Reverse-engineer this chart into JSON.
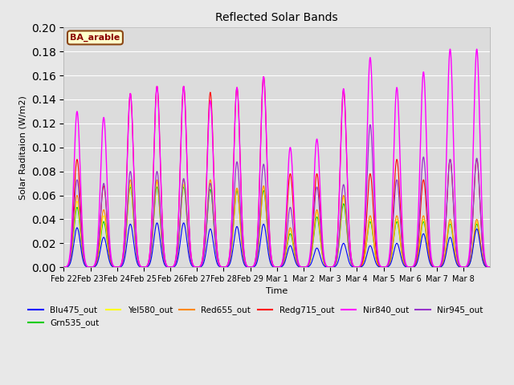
{
  "title": "Reflected Solar Bands",
  "ylabel": "Solar Raditaion (W/m2)",
  "xlabel": "Time",
  "annotation": "BA_arable",
  "ylim": [
    0.0,
    0.2
  ],
  "fig_width": 6.4,
  "fig_height": 4.8,
  "dpi": 100,
  "background_color": "#e8e8e8",
  "plot_bg": "#dcdcdc",
  "series": {
    "Blu475_out": {
      "color": "#0000ff",
      "lw": 0.8,
      "zorder": 4
    },
    "Grn535_out": {
      "color": "#00cc00",
      "lw": 0.8,
      "zorder": 3
    },
    "Yel580_out": {
      "color": "#ffff00",
      "lw": 0.8,
      "zorder": 3
    },
    "Red655_out": {
      "color": "#ff8800",
      "lw": 0.8,
      "zorder": 3
    },
    "Redg715_out": {
      "color": "#ff0000",
      "lw": 0.8,
      "zorder": 4
    },
    "Nir840_out": {
      "color": "#ff00ff",
      "lw": 1.0,
      "zorder": 5
    },
    "Nir945_out": {
      "color": "#9933cc",
      "lw": 0.9,
      "zorder": 4
    }
  },
  "xtick_labels": [
    "Feb 22",
    "Feb 23",
    "Feb 24",
    "Feb 25",
    "Feb 26",
    "Feb 27",
    "Feb 28",
    "Feb 29",
    "Mar 1",
    "Mar 2",
    "Mar 3",
    "Mar 4",
    "Mar 5",
    "Mar 6",
    "Mar 7",
    "Mar 8"
  ],
  "n_days": 16,
  "pts_per_day": 288,
  "sigma": 0.12,
  "day_peaks": {
    "Blu": [
      0.033,
      0.025,
      0.036,
      0.037,
      0.037,
      0.032,
      0.034,
      0.036,
      0.018,
      0.016,
      0.02,
      0.018,
      0.02,
      0.028,
      0.025,
      0.032
    ],
    "Grn": [
      0.05,
      0.038,
      0.067,
      0.067,
      0.067,
      0.065,
      0.064,
      0.064,
      0.028,
      0.042,
      0.053,
      0.038,
      0.038,
      0.038,
      0.036,
      0.036
    ],
    "Yel": [
      0.055,
      0.043,
      0.069,
      0.071,
      0.069,
      0.069,
      0.066,
      0.067,
      0.031,
      0.046,
      0.058,
      0.04,
      0.04,
      0.04,
      0.038,
      0.038
    ],
    "Red": [
      0.06,
      0.048,
      0.073,
      0.073,
      0.073,
      0.073,
      0.066,
      0.068,
      0.033,
      0.048,
      0.06,
      0.043,
      0.043,
      0.043,
      0.04,
      0.04
    ],
    "Redg": [
      0.09,
      0.068,
      0.145,
      0.151,
      0.151,
      0.146,
      0.15,
      0.159,
      0.078,
      0.078,
      0.148,
      0.078,
      0.09,
      0.073,
      0.09,
      0.09
    ],
    "Nir840": [
      0.13,
      0.125,
      0.145,
      0.151,
      0.151,
      0.139,
      0.15,
      0.159,
      0.1,
      0.107,
      0.149,
      0.175,
      0.15,
      0.163,
      0.182,
      0.182
    ],
    "Nir945": [
      0.073,
      0.07,
      0.08,
      0.08,
      0.074,
      0.07,
      0.088,
      0.086,
      0.05,
      0.067,
      0.069,
      0.119,
      0.073,
      0.092,
      0.09,
      0.091
    ]
  }
}
